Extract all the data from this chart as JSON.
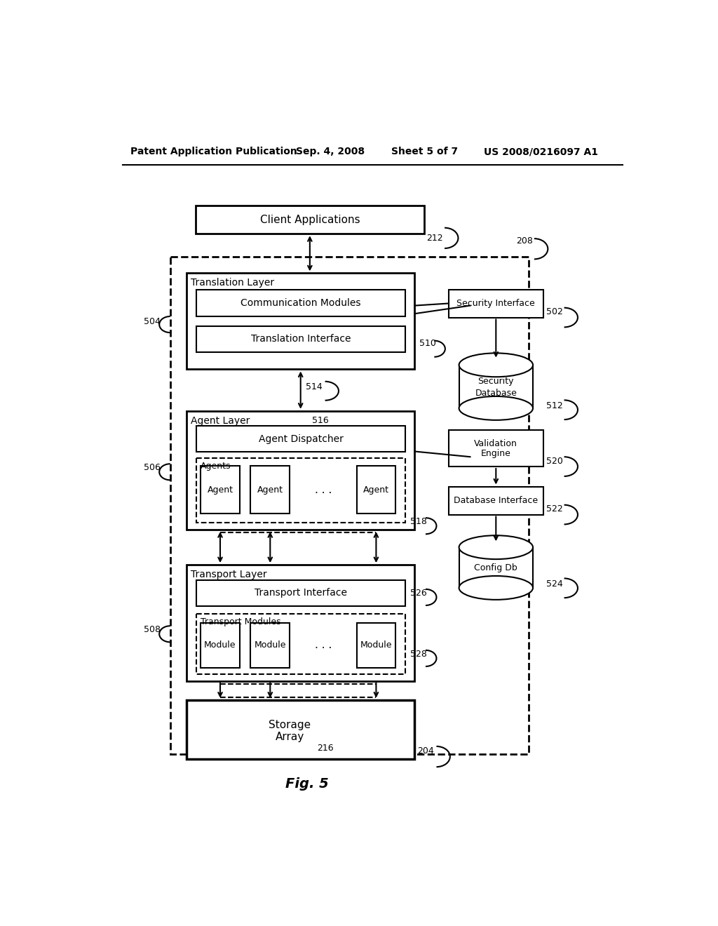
{
  "bg_color": "#ffffff",
  "header_text": "Patent Application Publication",
  "header_date": "Sep. 4, 2008",
  "header_sheet": "Sheet 5 of 7",
  "header_patent": "US 2008/0216097 A1",
  "fig_label": "Fig. 5",
  "labels": {
    "client_app": "Client Applications",
    "translation_layer": "Translation Layer",
    "comm_modules": "Communication Modules",
    "trans_interface": "Translation Interface",
    "agent_layer": "Agent Layer",
    "agent_dispatcher": "Agent Dispatcher",
    "agents_label": "Agents",
    "agent1": "Agent",
    "agent2": "Agent",
    "dots1": ". . .",
    "agent3": "Agent",
    "transport_layer": "Transport Layer",
    "transport_interface": "Transport Interface",
    "transport_modules": "Transport Modules",
    "module1": "Module",
    "module2": "Module",
    "dots2": ". . .",
    "module3": "Module",
    "storage_array_line1": "Storage",
    "storage_array_line2": "Array",
    "security_interface": "Security Interface",
    "security_db_line1": "Security",
    "security_db_line2": "Database",
    "validation_line1": "Validation",
    "validation_line2": "Engine",
    "database_interface": "Database Interface",
    "config_db": "Config Db"
  },
  "refs": {
    "212": "212",
    "208": "208",
    "504": "504",
    "510": "510",
    "514": "514",
    "516": "516",
    "506": "506",
    "518": "518",
    "508": "508",
    "526": "526",
    "528": "528",
    "204": "204",
    "502": "502",
    "512": "512",
    "520": "520",
    "522": "522",
    "524": "524",
    "216": "216"
  }
}
